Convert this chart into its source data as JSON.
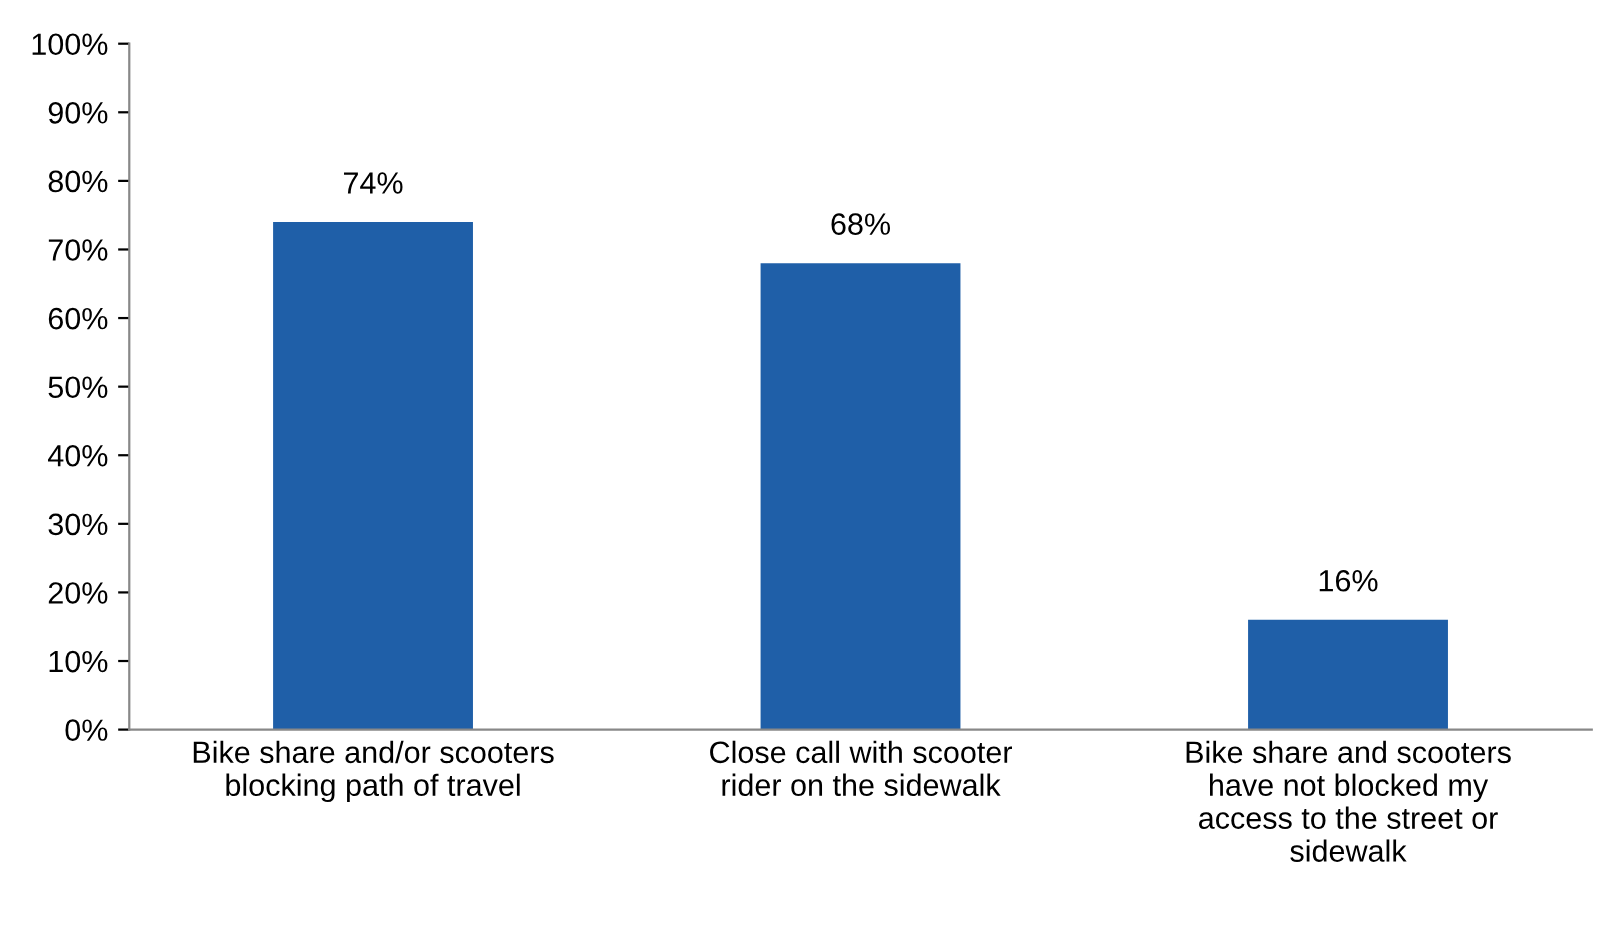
{
  "chart_data": {
    "type": "bar",
    "categories": [
      "Bike share and/or scooters\nblocking path of travel",
      "Close call with scooter\nrider on the sidewalk",
      "Bike share and scooters\nhave not blocked my\naccess to the street or\nsidewalk"
    ],
    "values": [
      74,
      68,
      16
    ],
    "value_labels": [
      "74%",
      "68%",
      "16%"
    ],
    "color": "#1f5fa8",
    "ylim": [
      0,
      100
    ],
    "yticks": [
      {
        "value": 0,
        "label": "0%"
      },
      {
        "value": 10,
        "label": "10%"
      },
      {
        "value": 20,
        "label": "20%"
      },
      {
        "value": 30,
        "label": "30%"
      },
      {
        "value": 40,
        "label": "40%"
      },
      {
        "value": 50,
        "label": "50%"
      },
      {
        "value": 60,
        "label": "60%"
      },
      {
        "value": 70,
        "label": "70%"
      },
      {
        "value": 80,
        "label": "80%"
      },
      {
        "value": 90,
        "label": "90%"
      },
      {
        "value": 100,
        "label": "100%"
      }
    ],
    "grid": false,
    "legend": false
  }
}
